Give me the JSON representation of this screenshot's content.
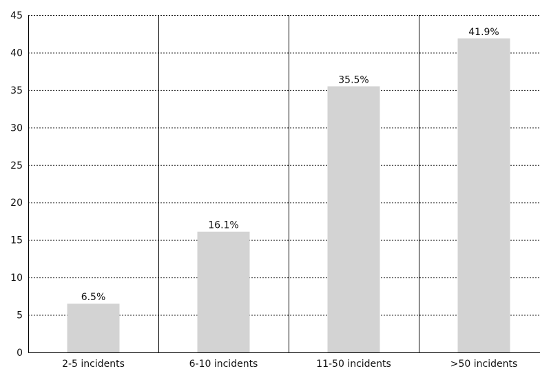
{
  "chart_data": {
    "type": "bar",
    "categories": [
      "2-5 incidents",
      "6-10 incidents",
      "11-50 incidents",
      ">50 incidents"
    ],
    "values": [
      6.5,
      16.1,
      35.5,
      41.9
    ],
    "data_labels": [
      "6.5%",
      "16.1%",
      "35.5%",
      "41.9%"
    ],
    "y_ticks": [
      0,
      5,
      10,
      15,
      20,
      25,
      30,
      35,
      40,
      45
    ],
    "ylim": [
      0,
      45
    ],
    "title": "",
    "xlabel": "",
    "ylabel": "",
    "grid": true,
    "legend": "none",
    "bar_color": "#d3d3d3"
  }
}
